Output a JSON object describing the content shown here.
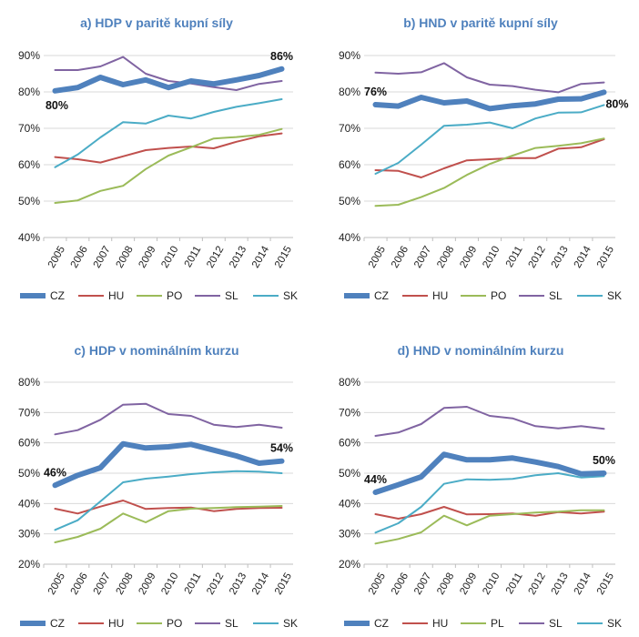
{
  "chart_data": [
    {
      "id": "a",
      "type": "line",
      "title": "a) HDP v paritě kupní síly",
      "categories": [
        "2005",
        "2006",
        "2007",
        "2008",
        "2009",
        "2010",
        "2011",
        "2012",
        "2013",
        "2014",
        "2015"
      ],
      "ylim": [
        40,
        90
      ],
      "yticks": [
        "40%",
        "50%",
        "60%",
        "70%",
        "80%",
        "90%"
      ],
      "ytick_values": [
        40,
        50,
        60,
        70,
        80,
        90
      ],
      "grid": true,
      "legend": "bottom",
      "series": [
        {
          "name": "CZ",
          "color": "#4f81bd",
          "width": 6,
          "values": [
            80.3,
            81.2,
            84.0,
            82.0,
            83.3,
            81.2,
            83.0,
            82.2,
            83.3,
            84.5,
            86.3
          ]
        },
        {
          "name": "HU",
          "color": "#c0504d",
          "width": 2,
          "values": [
            62.1,
            61.5,
            60.6,
            62.3,
            64.0,
            64.6,
            65.0,
            64.5,
            66.3,
            67.8,
            68.6
          ]
        },
        {
          "name": "PO",
          "color": "#9bbb59",
          "width": 2,
          "values": [
            49.5,
            50.2,
            52.8,
            54.2,
            58.8,
            62.5,
            64.8,
            67.2,
            67.6,
            68.2,
            69.8
          ]
        },
        {
          "name": "SL",
          "color": "#8064a2",
          "width": 2,
          "values": [
            86.0,
            86.0,
            87.0,
            89.6,
            85.0,
            83.0,
            82.3,
            81.3,
            80.5,
            82.2,
            83.0
          ]
        },
        {
          "name": "SK",
          "color": "#4bacc6",
          "width": 2,
          "values": [
            59.3,
            62.8,
            67.5,
            71.7,
            71.3,
            73.5,
            72.7,
            74.5,
            75.9,
            76.9,
            78.0
          ]
        }
      ],
      "annotations": [
        {
          "text": "80%",
          "x_index": 0,
          "value": 80.3,
          "pos": "below"
        },
        {
          "text": "86%",
          "x_index": 10,
          "value": 86.3,
          "pos": "above"
        }
      ]
    },
    {
      "id": "b",
      "type": "line",
      "title": "b) HND v paritě kupní síly",
      "categories": [
        "2005",
        "2006",
        "2007",
        "2008",
        "2009",
        "2010",
        "2011",
        "2012",
        "2013",
        "2014",
        "2015"
      ],
      "ylim": [
        40,
        90
      ],
      "yticks": [
        "40%",
        "50%",
        "60%",
        "70%",
        "80%",
        "90%"
      ],
      "ytick_values": [
        40,
        50,
        60,
        70,
        80,
        90
      ],
      "grid": true,
      "legend": "bottom",
      "series": [
        {
          "name": "CZ",
          "color": "#4f81bd",
          "width": 6,
          "values": [
            76.5,
            76.1,
            78.5,
            77.0,
            77.5,
            75.4,
            76.2,
            76.7,
            78.0,
            78.1,
            79.9
          ]
        },
        {
          "name": "HU",
          "color": "#c0504d",
          "width": 2,
          "values": [
            58.5,
            58.3,
            56.5,
            59.0,
            61.2,
            61.5,
            61.8,
            61.8,
            64.4,
            64.8,
            67.0
          ]
        },
        {
          "name": "PO",
          "color": "#9bbb59",
          "width": 2,
          "values": [
            48.7,
            49.0,
            51.1,
            53.6,
            57.2,
            60.2,
            62.5,
            64.6,
            65.2,
            65.9,
            67.2
          ]
        },
        {
          "name": "SL",
          "color": "#8064a2",
          "width": 2,
          "values": [
            85.3,
            85.0,
            85.4,
            87.9,
            84.0,
            82.0,
            81.6,
            80.6,
            79.9,
            82.2,
            82.6
          ]
        },
        {
          "name": "SK",
          "color": "#4bacc6",
          "width": 2,
          "values": [
            57.5,
            60.5,
            65.5,
            70.7,
            71.0,
            71.6,
            70.0,
            72.7,
            74.3,
            74.4,
            76.4
          ]
        }
      ],
      "annotations": [
        {
          "text": "76%",
          "x_index": 0,
          "value": 76.5,
          "pos": "above"
        },
        {
          "text": "80%",
          "x_index": 10,
          "value": 79.9,
          "pos": "right"
        }
      ]
    },
    {
      "id": "c",
      "type": "line",
      "title": "c) HDP v nominálním kurzu",
      "categories": [
        "2005",
        "2006",
        "2007",
        "2008",
        "2009",
        "2010",
        "2011",
        "2012",
        "2013",
        "2014",
        "2015"
      ],
      "ylim": [
        20,
        80
      ],
      "yticks": [
        "20%",
        "30%",
        "40%",
        "50%",
        "60%",
        "70%",
        "80%"
      ],
      "ytick_values": [
        20,
        30,
        40,
        50,
        60,
        70,
        80
      ],
      "grid": true,
      "legend": "bottom",
      "series": [
        {
          "name": "CZ",
          "color": "#4f81bd",
          "width": 6,
          "values": [
            46.0,
            49.3,
            51.8,
            59.7,
            58.3,
            58.7,
            59.5,
            57.6,
            55.7,
            53.3,
            54.0
          ]
        },
        {
          "name": "HU",
          "color": "#c0504d",
          "width": 2,
          "values": [
            38.3,
            36.7,
            39.0,
            41.0,
            38.2,
            38.5,
            38.7,
            37.5,
            38.2,
            38.5,
            38.6
          ]
        },
        {
          "name": "PO",
          "color": "#9bbb59",
          "width": 2,
          "values": [
            27.2,
            29.0,
            31.7,
            36.7,
            33.8,
            37.5,
            38.3,
            38.5,
            38.8,
            39.0,
            39.2
          ]
        },
        {
          "name": "SL",
          "color": "#8064a2",
          "width": 2,
          "values": [
            62.8,
            64.2,
            67.6,
            72.6,
            72.9,
            69.5,
            68.9,
            66.0,
            65.2,
            66.0,
            65.0
          ]
        },
        {
          "name": "SK",
          "color": "#4bacc6",
          "width": 2,
          "values": [
            31.3,
            34.5,
            40.7,
            47.0,
            48.2,
            48.9,
            49.7,
            50.3,
            50.7,
            50.5,
            50.0
          ]
        }
      ],
      "annotations": [
        {
          "text": "46%",
          "x_index": 0,
          "value": 46.0,
          "pos": "above"
        },
        {
          "text": "54%",
          "x_index": 10,
          "value": 54.0,
          "pos": "above"
        }
      ]
    },
    {
      "id": "d",
      "type": "line",
      "title": "d) HND v nominálním kurzu",
      "categories": [
        "2005",
        "2006",
        "2007",
        "2008",
        "2009",
        "2010",
        "2011",
        "2012",
        "2013",
        "2014",
        "2015"
      ],
      "ylim": [
        20,
        80
      ],
      "yticks": [
        "20%",
        "30%",
        "40%",
        "50%",
        "60%",
        "70%",
        "80%"
      ],
      "ytick_values": [
        20,
        30,
        40,
        50,
        60,
        70,
        80
      ],
      "grid": true,
      "legend": "bottom",
      "series": [
        {
          "name": "CZ",
          "color": "#4f81bd",
          "width": 6,
          "values": [
            43.7,
            46.2,
            48.8,
            56.2,
            54.4,
            54.4,
            55.0,
            53.7,
            52.2,
            49.8,
            50.0
          ]
        },
        {
          "name": "HU",
          "color": "#c0504d",
          "width": 2,
          "values": [
            36.5,
            35.0,
            36.5,
            38.9,
            36.4,
            36.5,
            36.7,
            36.0,
            37.2,
            36.7,
            37.3
          ]
        },
        {
          "name": "PL",
          "color": "#9bbb59",
          "width": 2,
          "values": [
            26.8,
            28.3,
            30.5,
            36.0,
            32.8,
            36.0,
            36.5,
            37.0,
            37.3,
            37.8,
            37.8
          ]
        },
        {
          "name": "SL",
          "color": "#8064a2",
          "width": 2,
          "values": [
            62.3,
            63.4,
            66.2,
            71.5,
            71.9,
            68.9,
            68.1,
            65.5,
            64.8,
            65.5,
            64.6
          ]
        },
        {
          "name": "SK",
          "color": "#4bacc6",
          "width": 2,
          "values": [
            30.4,
            33.5,
            38.9,
            46.5,
            48.0,
            47.8,
            48.1,
            49.3,
            50.0,
            48.6,
            49.0
          ]
        }
      ],
      "annotations": [
        {
          "text": "44%",
          "x_index": 0,
          "value": 43.7,
          "pos": "above"
        },
        {
          "text": "50%",
          "x_index": 10,
          "value": 50.0,
          "pos": "above"
        }
      ]
    }
  ]
}
